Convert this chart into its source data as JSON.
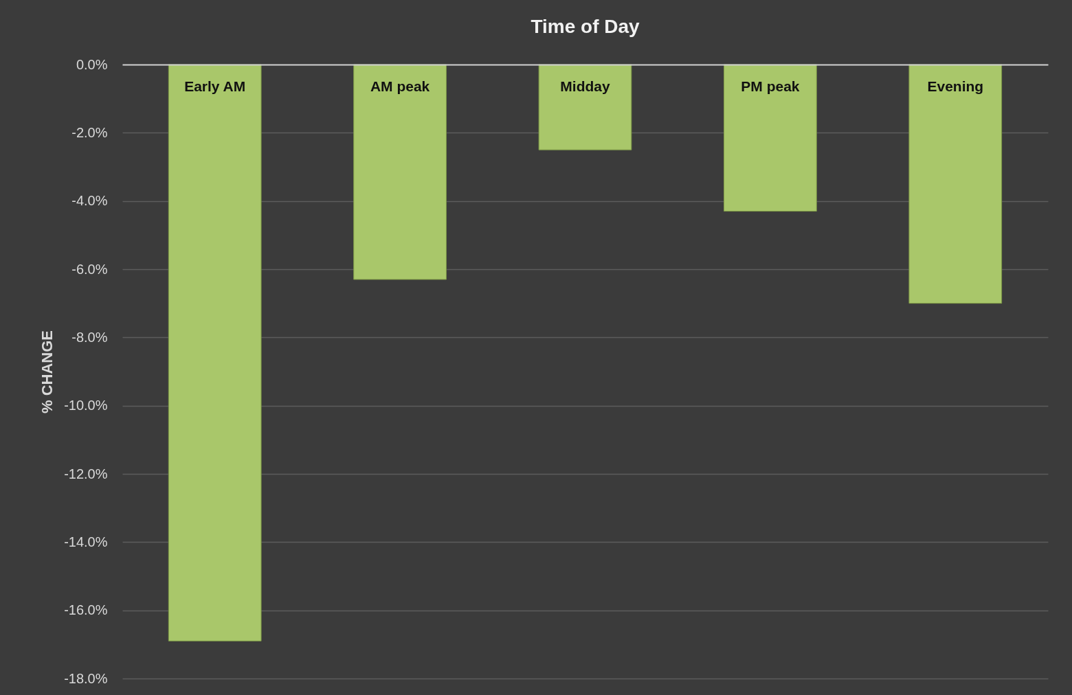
{
  "chart_data": {
    "type": "bar",
    "title": "Time of Day",
    "ylabel": "% CHANGE",
    "categories": [
      "Early AM",
      "AM peak",
      "Midday",
      "PM peak",
      "Evening"
    ],
    "values": [
      -16.9,
      -6.3,
      -2.5,
      -4.3,
      -7.0
    ],
    "color": "#a9c76a",
    "ylim": [
      -18,
      0
    ],
    "yticks": [
      {
        "value": 0,
        "label": "0.0%"
      },
      {
        "value": -2,
        "label": "-2.0%"
      },
      {
        "value": -4,
        "label": "-4.0%"
      },
      {
        "value": -6,
        "label": "-6.0%"
      },
      {
        "value": -8,
        "label": "-8.0%"
      },
      {
        "value": -10,
        "label": "-10.0%"
      },
      {
        "value": -12,
        "label": "-12.0%"
      },
      {
        "value": -14,
        "label": "-14.0%"
      },
      {
        "value": -16,
        "label": "-16.0%"
      },
      {
        "value": -18,
        "label": "-18.0%"
      }
    ],
    "grid": "y"
  }
}
